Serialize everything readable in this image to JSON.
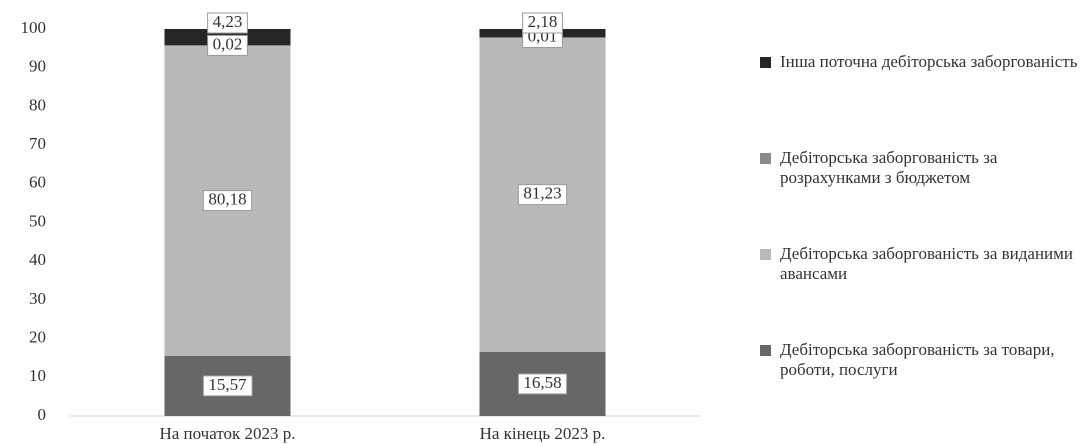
{
  "chart_data": {
    "type": "bar",
    "stacked": true,
    "categories": [
      "На початок  2023 р.",
      "На кінець 2023 р."
    ],
    "series": [
      {
        "name": "Дебіторська заборгованість за товари, роботи, послуги",
        "color": "#676767",
        "values": [
          15.57,
          16.58
        ],
        "value_labels": [
          "15,57",
          "16,58"
        ]
      },
      {
        "name": "Дебіторська заборгованість за виданими авансами",
        "color": "#b9b9b9",
        "values": [
          80.18,
          81.23
        ],
        "value_labels": [
          "80,18",
          "81,23"
        ]
      },
      {
        "name": "Дебіторська заборгованість за розрахунками з бюджетом",
        "color": "#8a8a8a",
        "values": [
          0.02,
          0.01
        ],
        "value_labels": [
          "0,02",
          "0,01"
        ]
      },
      {
        "name": "Інша поточна дебіторська заборгованість",
        "color": "#262626",
        "values": [
          4.23,
          2.18
        ],
        "value_labels": [
          "4,23",
          "2,18"
        ]
      }
    ],
    "ylim": [
      0,
      100
    ],
    "yticks": [
      0,
      10,
      20,
      30,
      40,
      50,
      60,
      70,
      80,
      90,
      100
    ],
    "legend": "right"
  }
}
